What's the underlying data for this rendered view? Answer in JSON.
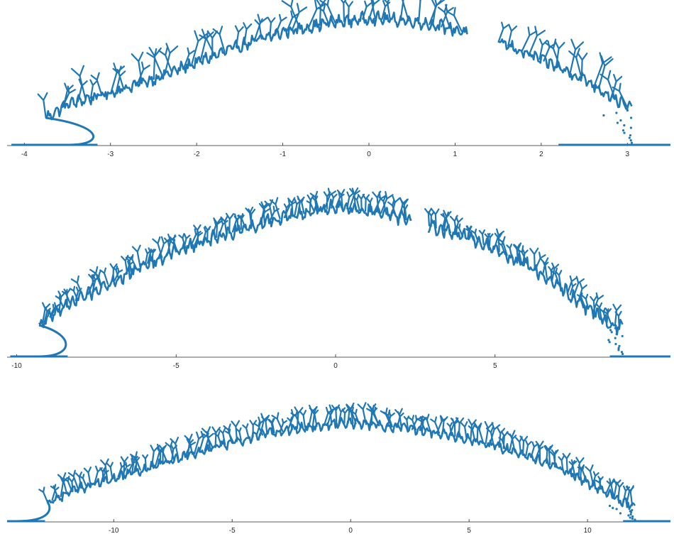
{
  "chart_data": [
    {
      "type": "scatter",
      "color": "#1f77b4",
      "xlim": [
        -4.2,
        3.5
      ],
      "ylim": [
        0,
        1
      ],
      "xticks": [
        -4,
        -3,
        -2,
        -1,
        0,
        1,
        2,
        3
      ],
      "xtick_labels": [
        "-4",
        "-3",
        "-2",
        "-1",
        "0",
        "1",
        "2",
        "3"
      ],
      "envelope": [
        [
          -3.75,
          0.2
        ],
        [
          -3.5,
          0.3
        ],
        [
          -3.0,
          0.38
        ],
        [
          -2.5,
          0.48
        ],
        [
          -2.0,
          0.6
        ],
        [
          -1.5,
          0.72
        ],
        [
          -1.0,
          0.82
        ],
        [
          -0.5,
          0.88
        ],
        [
          0.0,
          0.92
        ],
        [
          0.5,
          0.9
        ],
        [
          1.0,
          0.84
        ],
        [
          1.5,
          0.75
        ],
        [
          2.0,
          0.62
        ],
        [
          2.5,
          0.48
        ],
        [
          2.9,
          0.32
        ],
        [
          3.05,
          0.26
        ]
      ],
      "baseline_left": [
        -4.15,
        -3.15
      ],
      "baseline_right": [
        2.2,
        3.5
      ],
      "gap": [
        1.15,
        1.5
      ]
    },
    {
      "type": "scatter",
      "color": "#1f77b4",
      "xlim": [
        -10.3,
        10.5
      ],
      "ylim": [
        0,
        1
      ],
      "xticks": [
        -10,
        -5,
        0,
        5
      ],
      "xtick_labels": [
        "-10",
        "-5",
        "0",
        "5"
      ],
      "envelope": [
        [
          -9.3,
          0.2
        ],
        [
          -8.5,
          0.32
        ],
        [
          -7.5,
          0.42
        ],
        [
          -6.0,
          0.58
        ],
        [
          -4.5,
          0.7
        ],
        [
          -3.0,
          0.8
        ],
        [
          -1.5,
          0.88
        ],
        [
          0.0,
          0.94
        ],
        [
          1.5,
          0.9
        ],
        [
          3.0,
          0.82
        ],
        [
          4.5,
          0.72
        ],
        [
          6.0,
          0.58
        ],
        [
          7.0,
          0.45
        ],
        [
          7.8,
          0.32
        ],
        [
          8.5,
          0.22
        ],
        [
          9.0,
          0.18
        ]
      ],
      "baseline_left": [
        -10.2,
        -8.4
      ],
      "baseline_right": [
        8.6,
        10.5
      ],
      "gap": [
        2.4,
        2.9
      ]
    },
    {
      "type": "scatter",
      "color": "#1f77b4",
      "xlim": [
        -14.5,
        13.5
      ],
      "ylim": [
        0,
        1
      ],
      "xticks": [
        -10,
        -5,
        0,
        5,
        10
      ],
      "xtick_labels": [
        "-10",
        "-5",
        "0",
        "5",
        "10"
      ],
      "envelope": [
        [
          -12.8,
          0.18
        ],
        [
          -11.5,
          0.3
        ],
        [
          -10.0,
          0.4
        ],
        [
          -8.0,
          0.53
        ],
        [
          -6.0,
          0.66
        ],
        [
          -4.0,
          0.78
        ],
        [
          -2.0,
          0.86
        ],
        [
          0.0,
          0.9
        ],
        [
          2.0,
          0.86
        ],
        [
          4.0,
          0.8
        ],
        [
          6.0,
          0.7
        ],
        [
          8.0,
          0.56
        ],
        [
          9.5,
          0.42
        ],
        [
          10.5,
          0.3
        ],
        [
          11.3,
          0.2
        ],
        [
          12.0,
          0.14
        ]
      ],
      "baseline_left": [
        -14.5,
        -12.9
      ],
      "baseline_right": [
        11.5,
        13.5
      ],
      "gap": []
    }
  ]
}
